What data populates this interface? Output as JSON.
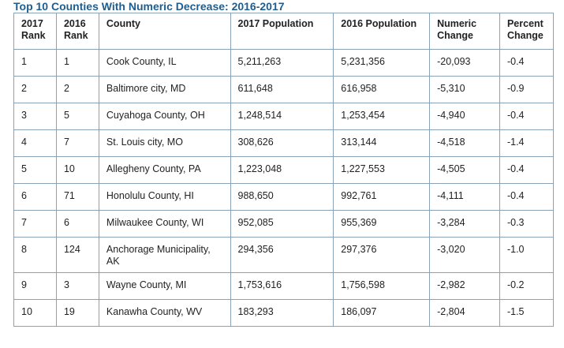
{
  "title": "Top 10 Counties With Numeric Decrease: 2016-2017",
  "columns": {
    "rank2017": "2017 Rank",
    "rank2016": "2016 Rank",
    "county": "County",
    "pop2017": "2017 Population",
    "pop2016": "2016 Population",
    "numeric_change": "Numeric Change",
    "percent_change": "Percent Change"
  },
  "rows": [
    {
      "rank2017": "1",
      "rank2016": "1",
      "county": "Cook County, IL",
      "pop2017": "5,211,263",
      "pop2016": "5,231,356",
      "numeric_change": "-20,093",
      "percent_change": "-0.4"
    },
    {
      "rank2017": "2",
      "rank2016": "2",
      "county": "Baltimore city, MD",
      "pop2017": "611,648",
      "pop2016": "616,958",
      "numeric_change": "-5,310",
      "percent_change": "-0.9"
    },
    {
      "rank2017": "3",
      "rank2016": "5",
      "county": "Cuyahoga County, OH",
      "pop2017": "1,248,514",
      "pop2016": "1,253,454",
      "numeric_change": "-4,940",
      "percent_change": "-0.4"
    },
    {
      "rank2017": "4",
      "rank2016": "7",
      "county": "St. Louis city, MO",
      "pop2017": "308,626",
      "pop2016": "313,144",
      "numeric_change": "-4,518",
      "percent_change": "-1.4"
    },
    {
      "rank2017": "5",
      "rank2016": "10",
      "county": "Allegheny County, PA",
      "pop2017": "1,223,048",
      "pop2016": "1,227,553",
      "numeric_change": "-4,505",
      "percent_change": "-0.4"
    },
    {
      "rank2017": "6",
      "rank2016": "71",
      "county": "Honolulu County, HI",
      "pop2017": "988,650",
      "pop2016": "992,761",
      "numeric_change": "-4,111",
      "percent_change": "-0.4"
    },
    {
      "rank2017": "7",
      "rank2016": "6",
      "county": "Milwaukee County, WI",
      "pop2017": "952,085",
      "pop2016": "955,369",
      "numeric_change": "-3,284",
      "percent_change": "-0.3"
    },
    {
      "rank2017": "8",
      "rank2016": "124",
      "county": "Anchorage Municipality, AK",
      "pop2017": "294,356",
      "pop2016": "297,376",
      "numeric_change": "-3,020",
      "percent_change": "-1.0"
    },
    {
      "rank2017": "9",
      "rank2016": "3",
      "county": "Wayne County, MI",
      "pop2017": "1,753,616",
      "pop2016": "1,756,598",
      "numeric_change": "-2,982",
      "percent_change": "-0.2"
    },
    {
      "rank2017": "10",
      "rank2016": "19",
      "county": "Kanawha County, WV",
      "pop2017": "183,293",
      "pop2016": "186,097",
      "numeric_change": "-2,804",
      "percent_change": "-1.5"
    }
  ]
}
